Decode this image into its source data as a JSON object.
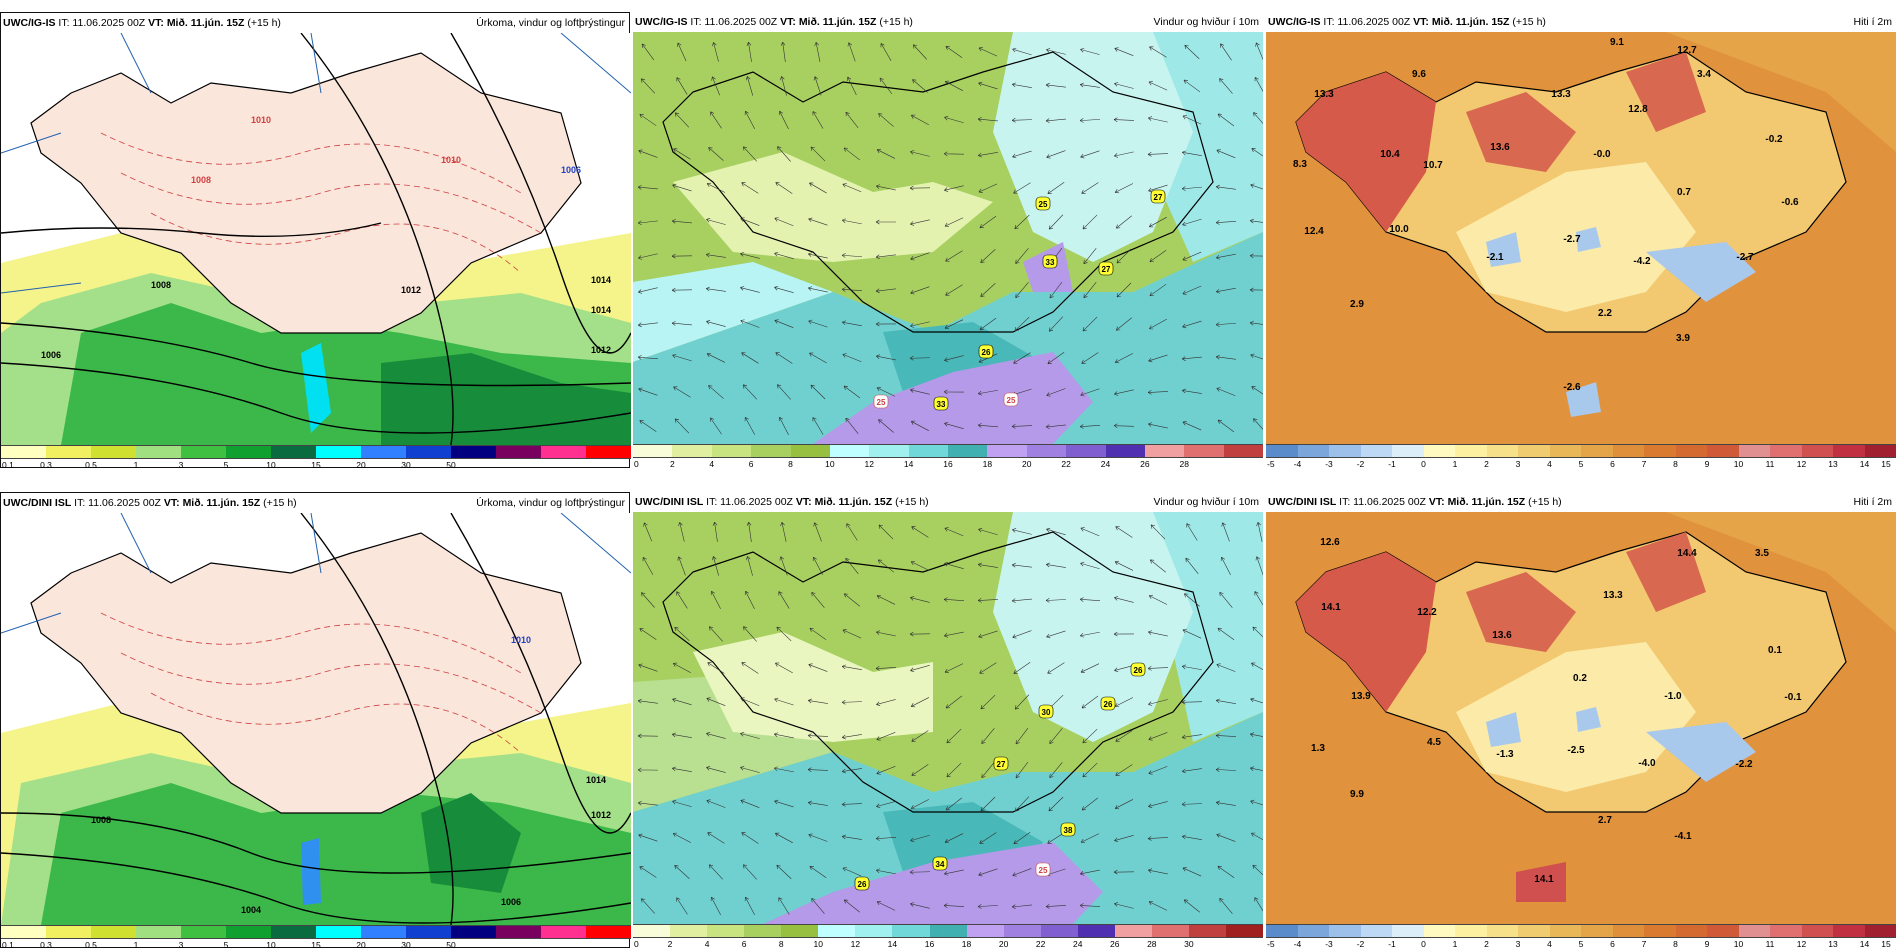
{
  "panels": [
    {
      "id": "ig-precip",
      "model": "UWC/IG-IS",
      "it": "IT: 11.06.2025 00Z",
      "vt_label": "VT:",
      "vt": "Mið. 11.jún. 15Z",
      "lead": "(+15 h)",
      "title": "Úrkoma, vindur og loftþrýstingur",
      "cbar_colors": [
        "#ffffc0",
        "#f0f060",
        "#d0e030",
        "#a0e080",
        "#40c040",
        "#10a030",
        "#0a6a40",
        "#00ffff",
        "#3080ff",
        "#1040d0",
        "#000080",
        "#7a0060",
        "#ff3090",
        "#ff0000"
      ],
      "ticks": [
        "0.1",
        "0.3",
        "0.5",
        "1",
        "3",
        "5",
        "10",
        "15",
        "20",
        "30",
        "50"
      ],
      "labels": [
        "1006",
        "1008",
        "1010",
        "1010",
        "1012",
        "1014",
        "1012",
        "1014",
        "1006",
        "1008"
      ]
    },
    {
      "id": "ig-wind",
      "model": "UWC/IG-IS",
      "it": "IT: 11.06.2025 00Z",
      "vt_label": "VT:",
      "vt": "Mið. 11.jún. 15Z",
      "lead": "(+15 h)",
      "title": "Vindur og hviður í 10m",
      "cbar_colors": [
        "#f8fcd8",
        "#e0f0a0",
        "#c8e480",
        "#a8d060",
        "#98c040",
        "#c0ffff",
        "#a0f0f0",
        "#70d8d8",
        "#40b0b0",
        "#c0a0f0",
        "#a080e0",
        "#8060d0",
        "#5030b0",
        "#f0a0a0",
        "#e07070",
        "#c04040"
      ],
      "ticks": [
        "0",
        "2",
        "4",
        "6",
        "8",
        "10",
        "12",
        "14",
        "16",
        "18",
        "20",
        "22",
        "24",
        "26",
        "28"
      ],
      "gust_labels": [
        {
          "text": "25",
          "style": "y"
        },
        {
          "text": "27",
          "style": "y"
        },
        {
          "text": "33",
          "style": "y"
        },
        {
          "text": "27",
          "style": "y"
        },
        {
          "text": "26",
          "style": "y"
        },
        {
          "text": "33",
          "style": "y"
        },
        {
          "text": "25",
          "style": "w"
        },
        {
          "text": "25",
          "style": "w"
        }
      ]
    },
    {
      "id": "ig-temp",
      "model": "UWC/IG-IS",
      "it": "IT: 11.06.2025 00Z",
      "vt_label": "VT:",
      "vt": "Mið. 11.jún. 15Z",
      "lead": "(+15 h)",
      "title": "Hiti í 2m",
      "cbar_colors": [
        "#5a8ccc",
        "#7aa6dc",
        "#9cc0ea",
        "#bcd8f4",
        "#dceef8",
        "#fffbc0",
        "#fdf0a0",
        "#f6e08a",
        "#f0cc70",
        "#e8b858",
        "#e4a448",
        "#df8e3a",
        "#da7a30",
        "#d46a30",
        "#d05a38",
        "#e09090",
        "#e07070",
        "#d05050",
        "#c03040",
        "#a02030"
      ],
      "ticks": [
        "-5",
        "-4",
        "-3",
        "-2",
        "-1",
        "0",
        "1",
        "2",
        "3",
        "4",
        "5",
        "6",
        "7",
        "8",
        "9",
        "10",
        "11",
        "12",
        "13",
        "14",
        "15"
      ],
      "temps": [
        "9.1",
        "12.7",
        "9.6",
        "3.4",
        "13.3",
        "13.3",
        "12.8",
        "10.4",
        "13.6",
        "-0.0",
        "-0.2",
        "8.3",
        "10.7",
        "0.7",
        "-0.6",
        "12.4",
        "10.0",
        "-2.1",
        "-2.7",
        "-4.2",
        "-2.7",
        "2.9",
        "2.2",
        "3.9",
        "-2.6"
      ]
    },
    {
      "id": "dini-precip",
      "model": "UWC/DINI ISL",
      "it": "IT: 11.06.2025 00Z",
      "vt_label": "VT:",
      "vt": "Mið. 11.jún. 15Z",
      "lead": "(+15 h)",
      "title": "Úrkoma, vindur og loftþrýstingur",
      "cbar_colors": [
        "#ffffc0",
        "#f0f060",
        "#d0e030",
        "#a0e080",
        "#40c040",
        "#10a030",
        "#0a6a40",
        "#00ffff",
        "#3080ff",
        "#1040d0",
        "#000080",
        "#7a0060",
        "#ff3090",
        "#ff0000"
      ],
      "ticks": [
        "0.1",
        "0.3",
        "0.5",
        "1",
        "3",
        "5",
        "10",
        "15",
        "20",
        "30",
        "50"
      ],
      "labels": [
        "1014",
        "1012",
        "1004",
        "1006",
        "1010",
        "1008"
      ]
    },
    {
      "id": "dini-wind",
      "model": "UWC/DINI ISL",
      "it": "IT: 11.06.2025 00Z",
      "vt_label": "VT:",
      "vt": "Mið. 11.jún. 15Z",
      "lead": "(+15 h)",
      "title": "Vindur og hviður í 10m",
      "cbar_colors": [
        "#f8fcd8",
        "#e0f0a0",
        "#c8e480",
        "#a8d060",
        "#98c040",
        "#c0ffff",
        "#a0f0f0",
        "#70d8d8",
        "#40b0b0",
        "#c0a0f0",
        "#a080e0",
        "#8060d0",
        "#5030b0",
        "#f0a0a0",
        "#e07070",
        "#c04040",
        "#a02020"
      ],
      "ticks": [
        "0",
        "2",
        "4",
        "6",
        "8",
        "10",
        "12",
        "14",
        "16",
        "18",
        "20",
        "22",
        "24",
        "26",
        "28",
        "30"
      ],
      "gust_labels": [
        {
          "text": "26",
          "style": "y"
        },
        {
          "text": "30",
          "style": "y"
        },
        {
          "text": "26",
          "style": "y"
        },
        {
          "text": "27",
          "style": "y"
        },
        {
          "text": "38",
          "style": "y"
        },
        {
          "text": "34",
          "style": "y"
        },
        {
          "text": "26",
          "style": "y"
        },
        {
          "text": "25",
          "style": "w"
        }
      ]
    },
    {
      "id": "dini-temp",
      "model": "UWC/DINI ISL",
      "it": "IT: 11.06.2025 00Z",
      "vt_label": "VT:",
      "vt": "Mið. 11.jún. 15Z",
      "lead": "(+15 h)",
      "title": "Hiti í 2m",
      "cbar_colors": [
        "#5a8ccc",
        "#7aa6dc",
        "#9cc0ea",
        "#bcd8f4",
        "#dceef8",
        "#fffbc0",
        "#fdf0a0",
        "#f6e08a",
        "#f0cc70",
        "#e8b858",
        "#e4a448",
        "#df8e3a",
        "#da7a30",
        "#d46a30",
        "#d05a38",
        "#e09090",
        "#e07070",
        "#d05050",
        "#c03040",
        "#a02030"
      ],
      "ticks": [
        "-5",
        "-4",
        "-3",
        "-2",
        "-1",
        "0",
        "1",
        "2",
        "3",
        "4",
        "5",
        "6",
        "7",
        "8",
        "9",
        "10",
        "11",
        "12",
        "13",
        "14",
        "15"
      ],
      "temps": [
        "12.6",
        "14.4",
        "3.5",
        "14.1",
        "12.2",
        "13.3",
        "13.6",
        "0.1",
        "0.2",
        "13.9",
        "-1.0",
        "-0.1",
        "1.3",
        "4.5",
        "-1.3",
        "-2.5",
        "-4.0",
        "-2.2",
        "9.9",
        "2.7",
        "-4.1",
        "14.1"
      ]
    }
  ]
}
